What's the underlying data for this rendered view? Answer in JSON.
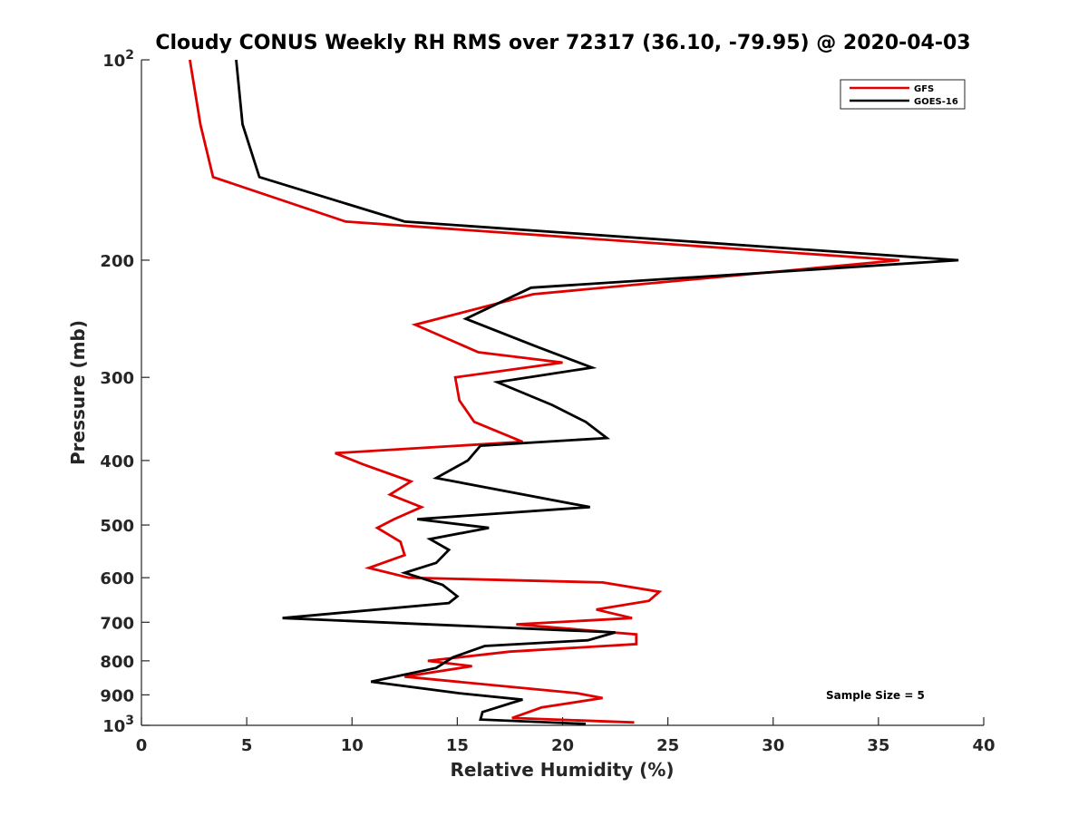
{
  "chart_data": {
    "type": "line",
    "title": "Cloudy CONUS Weekly RH RMS over 72317 (36.10, -79.95) @ 2020-04-03",
    "xlabel": "Relative Humidity (%)",
    "ylabel": "Pressure (mb)",
    "xlim": [
      0,
      40
    ],
    "ylim": [
      100,
      1000
    ],
    "y_scale": "log",
    "y_reversed": true,
    "grid": false,
    "legend_position": "top-right",
    "x_ticks": [
      "0",
      "5",
      "10",
      "15",
      "20",
      "25",
      "30",
      "35",
      "40"
    ],
    "y_ticks": [
      {
        "value": 100,
        "base": "10",
        "exp": "2"
      },
      {
        "value": 200,
        "label": "200"
      },
      {
        "value": 300,
        "label": "300"
      },
      {
        "value": 400,
        "label": "400"
      },
      {
        "value": 500,
        "label": "500"
      },
      {
        "value": 600,
        "label": "600"
      },
      {
        "value": 700,
        "label": "700"
      },
      {
        "value": 800,
        "label": "800"
      },
      {
        "value": 900,
        "label": "900"
      },
      {
        "value": 1000,
        "base": "10",
        "exp": "3"
      }
    ],
    "series": [
      {
        "name": "GFS",
        "color": "#e00000",
        "points": [
          [
            2.3,
            100
          ],
          [
            2.8,
            125
          ],
          [
            3.4,
            150
          ],
          [
            9.7,
            175
          ],
          [
            36.0,
            200
          ],
          [
            18.6,
            225
          ],
          [
            13.0,
            250
          ],
          [
            16.0,
            275
          ],
          [
            20.0,
            285
          ],
          [
            14.9,
            300
          ],
          [
            15.1,
            325
          ],
          [
            15.8,
            350
          ],
          [
            18.1,
            375
          ],
          [
            9.2,
            390
          ],
          [
            10.5,
            405
          ],
          [
            12.8,
            430
          ],
          [
            11.8,
            450
          ],
          [
            13.3,
            470
          ],
          [
            12.0,
            490
          ],
          [
            11.2,
            505
          ],
          [
            12.3,
            530
          ],
          [
            12.5,
            555
          ],
          [
            10.8,
            580
          ],
          [
            12.7,
            600
          ],
          [
            21.9,
            610
          ],
          [
            24.6,
            630
          ],
          [
            24.1,
            650
          ],
          [
            21.6,
            670
          ],
          [
            23.3,
            690
          ],
          [
            17.8,
            705
          ],
          [
            23.5,
            730
          ],
          [
            23.5,
            755
          ],
          [
            17.5,
            775
          ],
          [
            13.6,
            800
          ],
          [
            15.7,
            815
          ],
          [
            12.5,
            845
          ],
          [
            20.7,
            895
          ],
          [
            21.9,
            910
          ],
          [
            19.0,
            940
          ],
          [
            17.6,
            975
          ],
          [
            23.4,
            990
          ]
        ]
      },
      {
        "name": "GOES-16",
        "color": "#000000",
        "points": [
          [
            4.5,
            100
          ],
          [
            4.8,
            125
          ],
          [
            5.6,
            150
          ],
          [
            12.5,
            175
          ],
          [
            38.8,
            200
          ],
          [
            18.5,
            220
          ],
          [
            15.4,
            245
          ],
          [
            18.8,
            270
          ],
          [
            21.4,
            290
          ],
          [
            16.9,
            305
          ],
          [
            19.5,
            330
          ],
          [
            21.1,
            350
          ],
          [
            22.1,
            370
          ],
          [
            16.1,
            380
          ],
          [
            15.5,
            400
          ],
          [
            14.0,
            425
          ],
          [
            21.3,
            470
          ],
          [
            13.1,
            490
          ],
          [
            16.5,
            505
          ],
          [
            13.7,
            525
          ],
          [
            14.6,
            545
          ],
          [
            14.0,
            570
          ],
          [
            12.5,
            590
          ],
          [
            14.3,
            615
          ],
          [
            15.0,
            640
          ],
          [
            14.6,
            655
          ],
          [
            6.7,
            690
          ],
          [
            22.5,
            725
          ],
          [
            21.2,
            745
          ],
          [
            16.3,
            760
          ],
          [
            14.8,
            790
          ],
          [
            14.0,
            820
          ],
          [
            10.9,
            860
          ],
          [
            15.1,
            895
          ],
          [
            18.1,
            915
          ],
          [
            17.6,
            925
          ],
          [
            16.2,
            955
          ],
          [
            16.1,
            980
          ],
          [
            21.1,
            995
          ]
        ]
      }
    ],
    "annotation": "Sample Size = 5"
  }
}
